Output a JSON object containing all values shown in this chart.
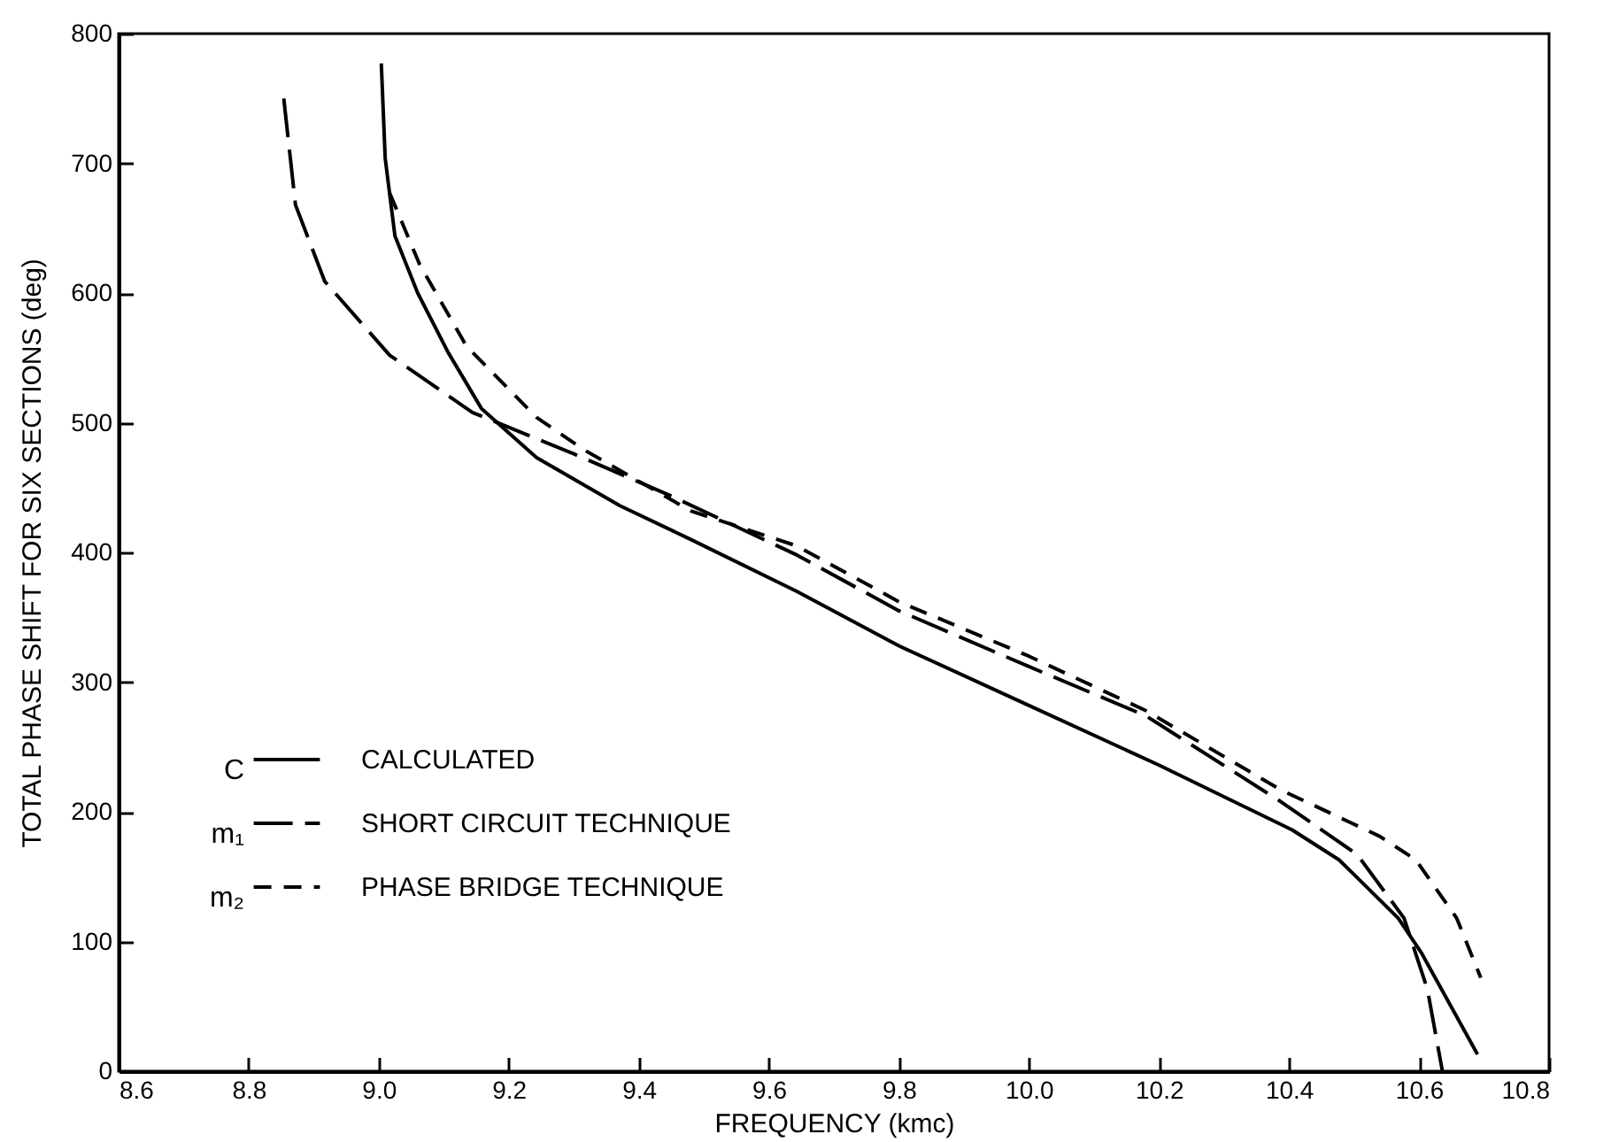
{
  "chart_data": {
    "type": "line",
    "xlabel": "FREQUENCY (kmc)",
    "ylabel": "TOTAL PHASE SHIFT FOR SIX SECTIONS (deg)",
    "xlim": [
      8.6,
      10.8
    ],
    "xticks": [
      8.6,
      8.8,
      {
        "value": 9,
        "label": "9.0"
      },
      9.2,
      9.4,
      9.6,
      9.8,
      {
        "value": 10,
        "label": "10.0"
      },
      10.2,
      10.4,
      10.6,
      10.8
    ],
    "ylim": [
      0,
      800
    ],
    "yticks": [
      0,
      100,
      200,
      300,
      400,
      500,
      600,
      700,
      800
    ],
    "grid": false,
    "legend": "left",
    "marker": "none",
    "annotations": [
      "C",
      "m₁",
      "m₂"
    ],
    "series": [
      {
        "name": "CALCULATED",
        "color": "#000000",
        "line_style": "solid",
        "x": [
          9.004,
          9.01,
          9.025,
          9.06,
          9.107,
          9.158,
          9.243,
          9.371,
          9.48,
          9.643,
          9.8,
          10.0,
          10.2,
          10.405,
          10.477,
          10.568,
          10.604,
          10.69
        ],
        "values": [
          777,
          704,
          644,
          600,
          554,
          511,
          473,
          436,
          410,
          370,
          328,
          282,
          236,
          186,
          163,
          118,
          91,
          13
        ]
      },
      {
        "name": "SHORT CIRCUIT TECHNIQUE",
        "color": "#000000",
        "line_style": "dashed",
        "x": [
          8.854,
          8.872,
          8.917,
          9.017,
          9.144,
          9.3,
          9.452,
          9.643,
          9.8,
          10.0,
          10.18,
          10.387,
          10.505,
          10.577,
          10.613,
          10.636
        ],
        "values": [
          750,
          668,
          609,
          552,
          508,
          476,
          443,
          398,
          355,
          312,
          274,
          208,
          167,
          118,
          63,
          0
        ]
      },
      {
        "name": "PHASE BRIDGE TECHNIQUE",
        "color": "#000000",
        "line_style": "dotted",
        "x": [
          9.017,
          9.063,
          9.135,
          9.243,
          9.316,
          9.48,
          9.643,
          9.8,
          10.0,
          10.18,
          10.387,
          10.54,
          10.595,
          10.658,
          10.695
        ],
        "values": [
          677,
          622,
          559,
          504,
          479,
          432,
          405,
          362,
          320,
          278,
          217,
          181,
          163,
          118,
          72
        ]
      }
    ]
  }
}
